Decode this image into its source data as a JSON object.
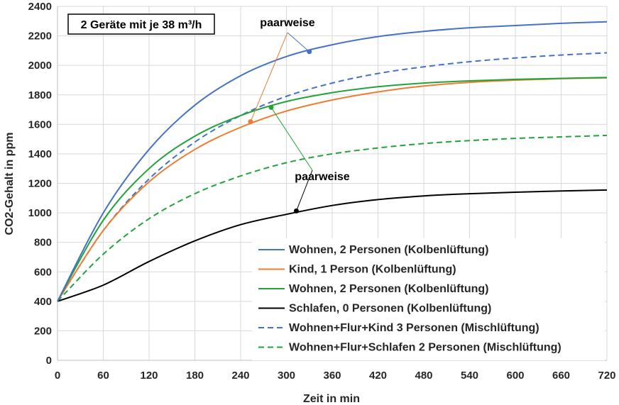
{
  "chart_data": {
    "type": "line",
    "xlabel": "Zeit in min",
    "ylabel": "CO2-Gehalt in ppm",
    "xlim": [
      0,
      720
    ],
    "ylim": [
      0,
      2400
    ],
    "xticks": [
      0,
      60,
      120,
      180,
      240,
      300,
      360,
      420,
      480,
      540,
      600,
      660,
      720
    ],
    "yticks": [
      0,
      200,
      400,
      600,
      800,
      1000,
      1200,
      1400,
      1600,
      1800,
      2000,
      2200,
      2400
    ],
    "grid": true,
    "legend_position": "bottom-right",
    "box_label": "2 Geräte mit je 38 m³/h",
    "annotations": [
      "paarweise",
      "paarweise"
    ],
    "x": [
      0,
      60,
      120,
      180,
      240,
      300,
      360,
      420,
      480,
      540,
      600,
      660,
      720
    ],
    "series": [
      {
        "name": "Wohnen, 2 Personen (Kolbenlüftung)",
        "color": "#4472c4",
        "style": "solid",
        "values": [
          400,
          1000,
          1430,
          1730,
          1930,
          2060,
          2140,
          2195,
          2230,
          2255,
          2270,
          2285,
          2295
        ]
      },
      {
        "name": "Kind, 1 Person (Kolbenlüftung)",
        "color": "#ed7d31",
        "style": "solid",
        "values": [
          400,
          880,
          1210,
          1430,
          1580,
          1690,
          1765,
          1820,
          1860,
          1885,
          1900,
          1910,
          1915
        ]
      },
      {
        "name": "Wohnen, 2 Personen (Kolbenlüftung)",
        "color": "#22a33a",
        "style": "solid",
        "values": [
          400,
          950,
          1300,
          1520,
          1660,
          1755,
          1815,
          1855,
          1880,
          1895,
          1905,
          1912,
          1918
        ]
      },
      {
        "name": "Schlafen, 0 Personen (Kolbenlüftung)",
        "color": "#000000",
        "style": "solid",
        "values": [
          400,
          510,
          670,
          810,
          920,
          990,
          1050,
          1090,
          1115,
          1130,
          1140,
          1148,
          1155
        ]
      },
      {
        "name": "Wohnen+Flur+Kind 3 Personen (Mischlüftung)",
        "color": "#4472c4",
        "style": "dashed",
        "values": [
          400,
          880,
          1230,
          1480,
          1660,
          1790,
          1880,
          1945,
          1990,
          2025,
          2050,
          2070,
          2085
        ]
      },
      {
        "name": "Wohnen+Flur+Schlafen 2 Personen (Mischlüftung)",
        "color": "#22a33a",
        "style": "dashed",
        "values": [
          400,
          720,
          960,
          1130,
          1250,
          1340,
          1400,
          1440,
          1470,
          1490,
          1505,
          1515,
          1525
        ]
      }
    ],
    "markers": [
      {
        "series": 0,
        "x": 330,
        "y": 2093
      },
      {
        "series": 1,
        "x": 253,
        "y": 1618
      },
      {
        "series": 2,
        "x": 280,
        "y": 1715
      },
      {
        "series": 3,
        "x": 313,
        "y": 1013
      }
    ]
  }
}
